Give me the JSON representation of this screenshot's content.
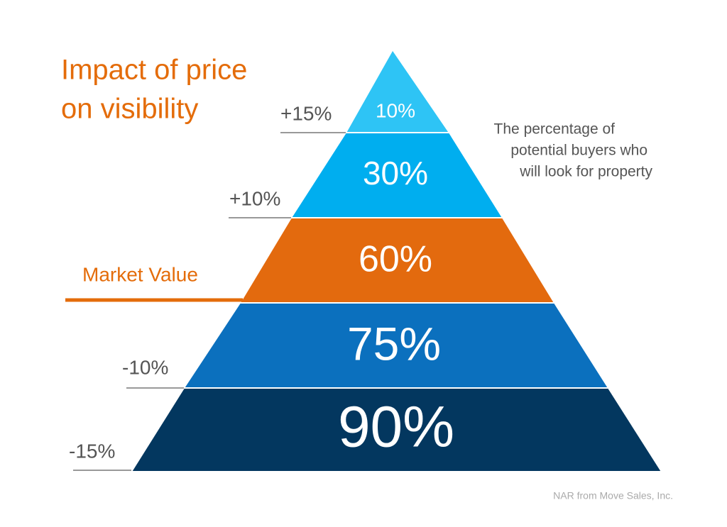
{
  "header": {
    "title_lines": [
      "Impact of price",
      "on visibility"
    ]
  },
  "note_lines": [
    "The percentage of",
    "potential buyers who",
    "will look for property"
  ],
  "pyramid": {
    "levels": [
      {
        "share": "10%",
        "price": "+15%"
      },
      {
        "share": "30%",
        "price": "+10%"
      },
      {
        "share": "60%",
        "price": "Market Value"
      },
      {
        "share": "75%",
        "price": "-10%"
      },
      {
        "share": "90%",
        "price": "-15%"
      }
    ]
  },
  "source": "NAR from Move Sales, Inc."
}
